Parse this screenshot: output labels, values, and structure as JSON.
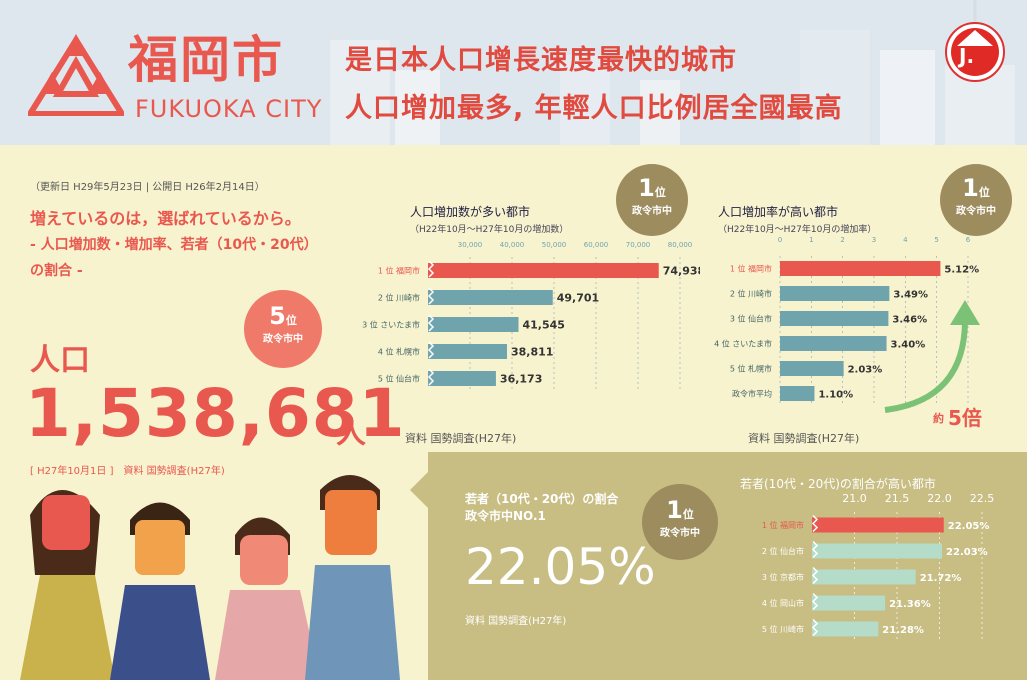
{
  "header": {
    "city_kanji": "福岡市",
    "city_en": "FUKUOKA CITY",
    "headline1": "是日本人口增長速度最快的城市",
    "headline2": "人口增加最多, 年輕人口比例居全國最高",
    "badge_letter": "J."
  },
  "intro": {
    "update_line": "（更新日 H29年5月23日 | 公開日 H26年2月14日）",
    "tagline1": "増えているのは，選ばれているから。",
    "tagline2": "- 人口増加数・増加率、若者（10代・20代）",
    "tagline3": "の割合 -"
  },
  "population": {
    "label": "人口",
    "value": "1,538,681",
    "unit": "人",
    "note": "[ H27年10月1日 ]　資料 国勢調査(H27年)",
    "rank_num": "5",
    "rank_suffix": "位",
    "rank_sub": "政令市中"
  },
  "young_summary": {
    "title1": "若者（10代・20代）の割合",
    "title2": "政令市中NO.1",
    "value": "22.05%",
    "source": "資料 国勢調査(H27年)",
    "rank_num": "1",
    "rank_suffix": "位",
    "rank_sub": "政令市中"
  },
  "colors": {
    "accent_red": "#e9584e",
    "bar_teal": "#6fa4ad",
    "bar_light": "#b5dcc9",
    "medal_olive": "#9c8c5e",
    "arrow_green": "#7cc276"
  },
  "chart_data": [
    {
      "type": "bar",
      "title": "人口増加数が多い都市",
      "subtitle": "（H22年10月～H27年10月の増加数）",
      "rank_num": "1",
      "rank_suffix": "位",
      "rank_sub": "政令市中",
      "categories": [
        "1 位 福岡市",
        "2 位 川崎市",
        "3 位 さいたま市",
        "4 位 札幌市",
        "5 位 仙台市"
      ],
      "values": [
        74938,
        49701,
        41545,
        38811,
        36173
      ],
      "value_labels": [
        "74,938",
        "49,701",
        "41,545",
        "38,811",
        "36,173"
      ],
      "tick_labels": [
        "30,000",
        "40,000",
        "50,000",
        "60,000",
        "70,000",
        "80,000"
      ],
      "ticks": [
        30000,
        40000,
        50000,
        60000,
        70000,
        80000
      ],
      "xlim": [
        20000,
        80000
      ],
      "source": "資料 国勢調査(H27年)"
    },
    {
      "type": "bar",
      "title": "人口増加率が高い都市",
      "subtitle": "（H22年10月～H27年10月の増加率）",
      "rank_num": "1",
      "rank_suffix": "位",
      "rank_sub": "政令市中",
      "categories": [
        "1 位 福岡市",
        "2 位 川崎市",
        "3 位 仙台市",
        "4 位 さいたま市",
        "5 位 札幌市",
        "政令市平均"
      ],
      "values": [
        5.12,
        3.49,
        3.46,
        3.4,
        2.03,
        1.1
      ],
      "value_labels": [
        "5.12%",
        "3.49%",
        "3.46%",
        "3.40%",
        "2.03%",
        "1.10%"
      ],
      "tick_labels": [
        "0",
        "1",
        "2",
        "3",
        "4",
        "5",
        "6"
      ],
      "ticks": [
        0,
        1,
        2,
        3,
        4,
        5,
        6
      ],
      "xlim": [
        0,
        6
      ],
      "annotation_prefix": "約",
      "annotation_value": "5倍",
      "source": "資料 国勢調査(H27年)"
    },
    {
      "type": "bar",
      "title": "若者(10代・20代)の割合が高い都市",
      "categories": [
        "1 位 福岡市",
        "2 位 仙台市",
        "3 位 京都市",
        "4 位 岡山市",
        "5 位 川崎市"
      ],
      "values": [
        22.05,
        22.03,
        21.72,
        21.36,
        21.28
      ],
      "value_labels": [
        "22.05%",
        "22.03%",
        "21.72%",
        "21.36%",
        "21.28%"
      ],
      "tick_labels": [
        "21.0",
        "21.5",
        "22.0",
        "22.5"
      ],
      "ticks": [
        21.0,
        21.5,
        22.0,
        22.5
      ],
      "xlim": [
        20.5,
        22.5
      ]
    }
  ]
}
